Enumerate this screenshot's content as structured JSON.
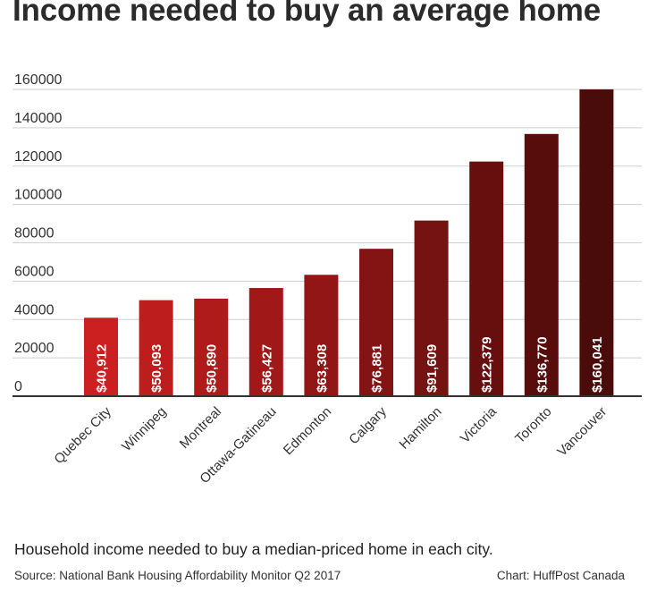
{
  "title": "Income needed to buy an average home",
  "caption": "Household income needed to buy a median-priced home in each city.",
  "source": "Source: National Bank Housing Affordability Monitor Q2 2017",
  "credit": "Chart: HuffPost Canada",
  "colors": {
    "light": "#cc1f1f",
    "dark": "#4a0b0b",
    "grid": "#cfcfcf",
    "axis": "#333333"
  },
  "chart_data": {
    "type": "bar",
    "categories": [
      "Quebec City",
      "Winnipeg",
      "Montreal",
      "Ottawa-Gatineau",
      "Edmonton",
      "Calgary",
      "Hamilton",
      "Victoria",
      "Toronto",
      "Vancouver"
    ],
    "values": [
      40912,
      50093,
      50890,
      56427,
      63308,
      76881,
      91609,
      122379,
      136770,
      160041
    ],
    "data_labels": [
      "$40,912",
      "$50,093",
      "$50,890",
      "$56,427",
      "$63,308",
      "$76,881",
      "$91,609",
      "$122,379",
      "$136,770",
      "$160,041"
    ],
    "yticks": [
      0,
      20000,
      40000,
      60000,
      80000,
      100000,
      120000,
      140000,
      160000
    ],
    "ylim": [
      0,
      160000
    ],
    "grid": true,
    "xlabel": "",
    "ylabel": ""
  }
}
